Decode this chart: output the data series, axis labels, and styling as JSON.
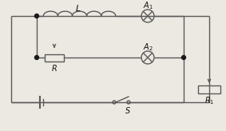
{
  "bg_color": "#ece9e2",
  "wire_color": "#5a5a5a",
  "component_color": "#5a5a5a",
  "text_color": "#111111",
  "dot_color": "#1a1a1a",
  "fig_width": 2.83,
  "fig_height": 1.64,
  "dpi": 100
}
